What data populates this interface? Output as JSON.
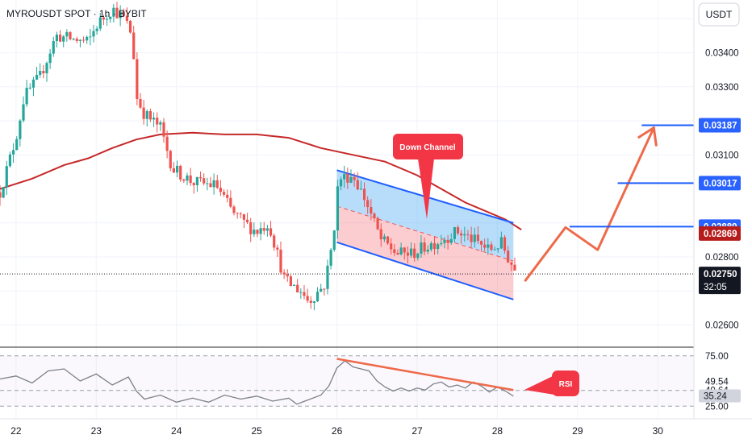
{
  "header": {
    "title": "MYROUSDT SPOT · 1h · BYBIT"
  },
  "currency_badge": "USDT",
  "colors": {
    "bull": "#26a69a",
    "bear": "#ef5350",
    "ma": "#c62828",
    "channel_blue": "#1e5eff",
    "arrow": "#ee6a4a",
    "label_red": "#f23645",
    "rsi_line": "#7c8088"
  },
  "chart_data": {
    "type": "candlestick",
    "title": "MYROUSDT SPOT · 1h · BYBIT",
    "x_ticks": [
      "22",
      "23",
      "24",
      "25",
      "26",
      "27",
      "28",
      "29",
      "30"
    ],
    "x_range": [
      21.8,
      30.45
    ],
    "y_ticks": [
      "0.03400",
      "0.03300",
      "0.03100",
      "0.02800",
      "0.02600"
    ],
    "y_range": [
      0.02535,
      0.03555
    ],
    "last_price": "0.02750",
    "countdown": "32:05",
    "price_levels": [
      {
        "price": 0.03187,
        "label": "0.03187",
        "start_x": 29.8
      },
      {
        "price": 0.03017,
        "label": "0.03017",
        "start_x": 29.5
      },
      {
        "price": 0.02889,
        "label": "0.02889",
        "start_x": 28.9
      }
    ],
    "ma_label": {
      "price": 0.02869,
      "label": "0.02869"
    },
    "moving_average": [
      [
        21.8,
        0.03
      ],
      [
        22.2,
        0.0303
      ],
      [
        22.6,
        0.0307
      ],
      [
        22.9,
        0.0309
      ],
      [
        23.2,
        0.0312
      ],
      [
        23.5,
        0.03145
      ],
      [
        23.8,
        0.0316
      ],
      [
        24.2,
        0.03165
      ],
      [
        24.6,
        0.0316
      ],
      [
        25.0,
        0.0316
      ],
      [
        25.4,
        0.0315
      ],
      [
        25.8,
        0.0312
      ],
      [
        26.2,
        0.031
      ],
      [
        26.6,
        0.0308
      ],
      [
        27.0,
        0.0304
      ],
      [
        27.3,
        0.03
      ],
      [
        27.6,
        0.0296
      ],
      [
        27.9,
        0.0293
      ],
      [
        28.1,
        0.0291
      ],
      [
        28.3,
        0.0288
      ]
    ],
    "annotations": {
      "channel_label": "Down Channel",
      "rsi_label": "RSI"
    },
    "channel": {
      "upper": [
        [
          26.0,
          0.03055
        ],
        [
          28.2,
          0.029
        ]
      ],
      "lower": [
        [
          26.0,
          0.02843
        ],
        [
          28.2,
          0.02675
        ]
      ],
      "mid": [
        [
          26.0,
          0.02949
        ],
        [
          28.2,
          0.02788
        ]
      ]
    },
    "forecast_path": [
      [
        28.35,
        0.02731
      ],
      [
        28.85,
        0.02887
      ],
      [
        29.25,
        0.02821
      ],
      [
        29.95,
        0.0318
      ]
    ],
    "rsi": {
      "levels": [
        "75.00",
        "49.54",
        "40.64",
        "35.24",
        "25.00"
      ],
      "range": [
        18,
        82
      ],
      "trend": [
        [
          26.0,
          72
        ],
        [
          28.2,
          41
        ]
      ],
      "series": [
        [
          21.8,
          52
        ],
        [
          22.0,
          55
        ],
        [
          22.2,
          48
        ],
        [
          22.4,
          60
        ],
        [
          22.6,
          62
        ],
        [
          22.8,
          50
        ],
        [
          23.0,
          57
        ],
        [
          23.2,
          46
        ],
        [
          23.4,
          54
        ],
        [
          23.5,
          40
        ],
        [
          23.6,
          32
        ],
        [
          23.8,
          36
        ],
        [
          24.0,
          29
        ],
        [
          24.2,
          33
        ],
        [
          24.4,
          29
        ],
        [
          24.6,
          36
        ],
        [
          24.8,
          32
        ],
        [
          25.0,
          35
        ],
        [
          25.2,
          30
        ],
        [
          25.4,
          33
        ],
        [
          25.5,
          27
        ],
        [
          25.6,
          30
        ],
        [
          25.8,
          36
        ],
        [
          25.9,
          45
        ],
        [
          26.0,
          63
        ],
        [
          26.1,
          70
        ],
        [
          26.2,
          64
        ],
        [
          26.4,
          60
        ],
        [
          26.5,
          50
        ],
        [
          26.6,
          44
        ],
        [
          26.7,
          40
        ],
        [
          26.8,
          43
        ],
        [
          26.9,
          40
        ],
        [
          27.0,
          43
        ],
        [
          27.1,
          41
        ],
        [
          27.2,
          47
        ],
        [
          27.3,
          49
        ],
        [
          27.4,
          44
        ],
        [
          27.5,
          46
        ],
        [
          27.6,
          43
        ],
        [
          27.7,
          49
        ],
        [
          27.8,
          45
        ],
        [
          27.9,
          39
        ],
        [
          28.0,
          44
        ],
        [
          28.1,
          40
        ],
        [
          28.2,
          35
        ]
      ]
    },
    "candle_path": [
      [
        21.8,
        0.0299
      ],
      [
        22.0,
        0.0315
      ],
      [
        22.1,
        0.0327
      ],
      [
        22.3,
        0.0333
      ],
      [
        22.5,
        0.0345
      ],
      [
        22.7,
        0.0344
      ],
      [
        22.9,
        0.0343
      ],
      [
        23.0,
        0.0348
      ],
      [
        23.2,
        0.0353
      ],
      [
        23.35,
        0.035
      ],
      [
        23.45,
        0.0345
      ],
      [
        23.5,
        0.0327
      ],
      [
        23.6,
        0.0322
      ],
      [
        23.8,
        0.0318
      ],
      [
        23.95,
        0.0306
      ],
      [
        24.2,
        0.0302
      ],
      [
        24.5,
        0.0301
      ],
      [
        24.7,
        0.0293
      ],
      [
        24.9,
        0.0289
      ],
      [
        25.0,
        0.02875
      ],
      [
        25.15,
        0.029
      ],
      [
        25.35,
        0.0273
      ],
      [
        25.55,
        0.027
      ],
      [
        25.65,
        0.0267
      ],
      [
        25.85,
        0.0272
      ],
      [
        25.95,
        0.0285
      ],
      [
        26.02,
        0.0303
      ],
      [
        26.2,
        0.0304
      ],
      [
        26.35,
        0.0297
      ],
      [
        26.55,
        0.0285
      ],
      [
        26.75,
        0.0281
      ],
      [
        26.95,
        0.0281
      ],
      [
        27.1,
        0.0283
      ],
      [
        27.3,
        0.0285
      ],
      [
        27.5,
        0.02875
      ],
      [
        27.7,
        0.0285
      ],
      [
        27.9,
        0.0282
      ],
      [
        28.05,
        0.0284
      ],
      [
        28.15,
        0.0279
      ],
      [
        28.25,
        0.0275
      ]
    ],
    "grid": true
  }
}
